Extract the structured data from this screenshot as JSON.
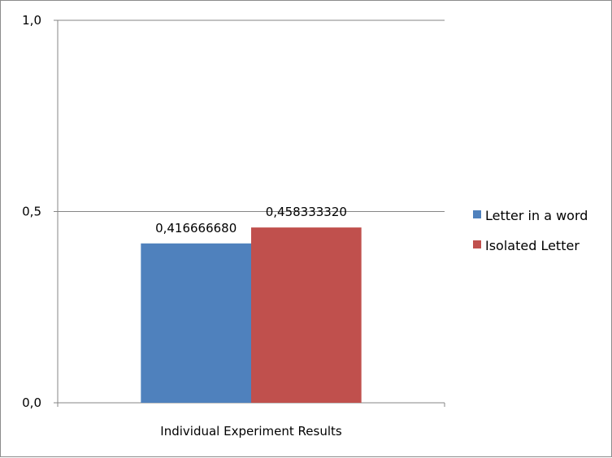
{
  "chart_data": {
    "type": "bar",
    "title": "",
    "xlabel": "",
    "ylabel": "",
    "categories": [
      "Individual Experiment Results"
    ],
    "series": [
      {
        "name": "Letter in a word",
        "values": [
          0.41666668
        ],
        "label": "0,416666680",
        "color": "#4f81bd"
      },
      {
        "name": "Isolated Letter",
        "values": [
          0.45833332
        ],
        "label": "0,458333320",
        "color": "#c0504d"
      }
    ],
    "ylim": [
      0,
      1
    ],
    "yticks": [
      {
        "value": 0,
        "label": "0,0"
      },
      {
        "value": 0.5,
        "label": "0,5"
      },
      {
        "value": 1,
        "label": "1,0"
      }
    ],
    "grid": true,
    "legend": "right"
  }
}
